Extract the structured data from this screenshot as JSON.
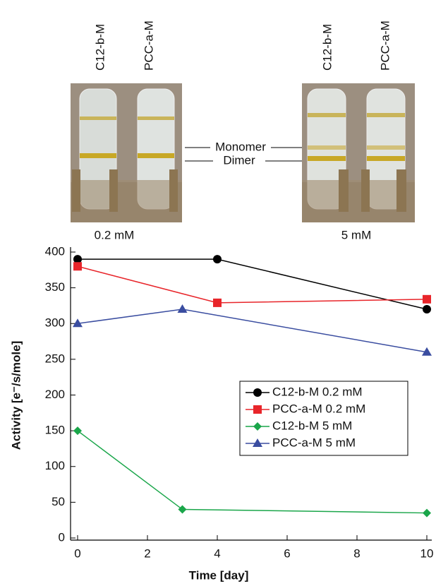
{
  "photo_panel": {
    "tube_labels_left": [
      "C12-b-M",
      "PCC-a-M"
    ],
    "tube_labels_right": [
      "C12-b-M",
      "PCC-a-M"
    ],
    "band_labels": [
      "Monomer",
      "Dimer"
    ],
    "concentration_labels": [
      "0.2 mM",
      "5 mM"
    ]
  },
  "chart_data": {
    "type": "line",
    "xlabel": "Time [day]",
    "ylabel": "Activity [e⁻/s/mole]",
    "xlim": [
      0,
      10
    ],
    "xticks": [
      0,
      2,
      4,
      6,
      8,
      10
    ],
    "ylim": [
      0,
      400
    ],
    "yticks": [
      0,
      50,
      100,
      150,
      200,
      250,
      300,
      350,
      400
    ],
    "legend": "center-right",
    "series": [
      {
        "name": "C12-b-M 0.2 mM",
        "color": "#000000",
        "marker": "circle",
        "x": [
          0,
          4,
          10
        ],
        "values": [
          390,
          390,
          320
        ]
      },
      {
        "name": "PCC-a-M 0.2 mM",
        "color": "#e8252a",
        "marker": "square",
        "x": [
          0,
          4,
          10
        ],
        "values": [
          380,
          329,
          334
        ]
      },
      {
        "name": "C12-b-M 5 mM",
        "color": "#1aa64a",
        "marker": "diamond",
        "x": [
          0,
          3,
          10
        ],
        "values": [
          150,
          40,
          35
        ]
      },
      {
        "name": "PCC-a-M 5 mM",
        "color": "#3a4da0",
        "marker": "triangle",
        "x": [
          0,
          3,
          10
        ],
        "values": [
          300,
          320,
          260
        ]
      }
    ]
  }
}
